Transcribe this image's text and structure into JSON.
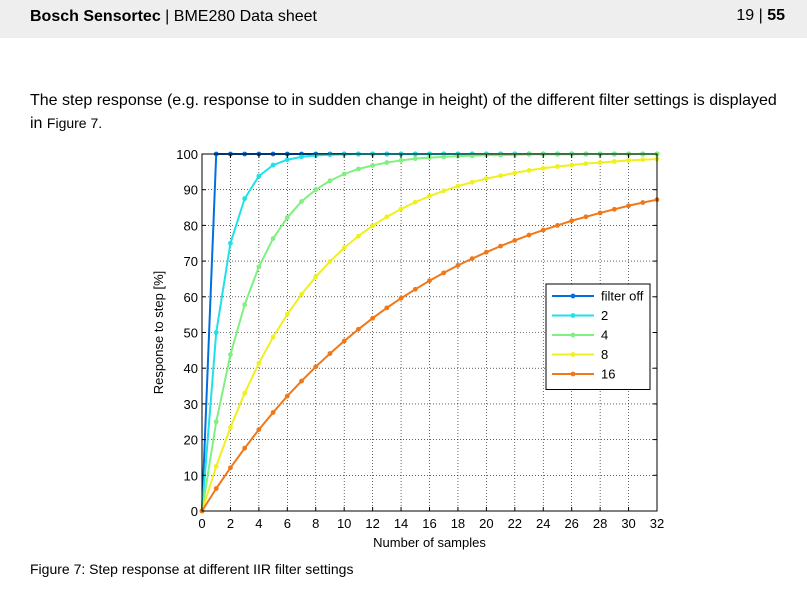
{
  "header": {
    "brand": "Bosch Sensortec",
    "separator": " | ",
    "title": "BME280 Data sheet",
    "page": "19",
    "page_sep": " | ",
    "total": "55"
  },
  "body": {
    "text": "The step response (e.g. response to in sudden change in height) of the different filter settings is displayed in",
    "figref": "Figure 7."
  },
  "caption": "Figure 7: Step response at different IIR filter settings",
  "chart_data": {
    "type": "line",
    "xlabel": "Number of samples",
    "ylabel": "Response to step [%]",
    "xlim": [
      0,
      32
    ],
    "ylim": [
      0,
      100
    ],
    "xticks": [
      0,
      2,
      4,
      6,
      8,
      10,
      12,
      14,
      16,
      18,
      20,
      22,
      24,
      26,
      28,
      30,
      32
    ],
    "yticks": [
      0,
      10,
      20,
      30,
      40,
      50,
      60,
      70,
      80,
      90,
      100
    ],
    "grid": "dotted",
    "legend_position": "right",
    "x": [
      0,
      1,
      2,
      3,
      4,
      5,
      6,
      7,
      8,
      9,
      10,
      11,
      12,
      13,
      14,
      15,
      16,
      17,
      18,
      19,
      20,
      21,
      22,
      23,
      24,
      25,
      26,
      27,
      28,
      29,
      30,
      31,
      32
    ],
    "series": [
      {
        "name": "filter off",
        "color": "#0070dd",
        "values": [
          0,
          100,
          100,
          100,
          100,
          100,
          100,
          100,
          100,
          100,
          100,
          100,
          100,
          100,
          100,
          100,
          100,
          100,
          100,
          100,
          100,
          100,
          100,
          100,
          100,
          100,
          100,
          100,
          100,
          100,
          100,
          100,
          100
        ]
      },
      {
        "name": "2",
        "color": "#22e0e8",
        "values": [
          0,
          50,
          75,
          87.5,
          93.8,
          96.9,
          98.4,
          99.2,
          99.6,
          99.8,
          99.9,
          100,
          100,
          100,
          100,
          100,
          100,
          100,
          100,
          100,
          100,
          100,
          100,
          100,
          100,
          100,
          100,
          100,
          100,
          100,
          100,
          100,
          100
        ]
      },
      {
        "name": "4",
        "color": "#80f080",
        "values": [
          0,
          25,
          43.8,
          57.8,
          68.4,
          76.3,
          82.2,
          86.7,
          90,
          92.5,
          94.4,
          95.8,
          96.8,
          97.6,
          98.2,
          98.7,
          99,
          99.2,
          99.4,
          99.5,
          99.7,
          99.7,
          99.8,
          99.9,
          99.9,
          99.9,
          99.9,
          100,
          100,
          100,
          100,
          100,
          100
        ]
      },
      {
        "name": "8",
        "color": "#f0f020",
        "values": [
          0,
          12.5,
          23.4,
          33,
          41.4,
          48.7,
          55.1,
          60.7,
          65.6,
          69.9,
          73.7,
          77,
          79.9,
          82.4,
          84.6,
          86.5,
          88.2,
          89.7,
          91,
          92.1,
          93.1,
          93.9,
          94.7,
          95.4,
          96,
          96.5,
          96.9,
          97.3,
          97.6,
          97.9,
          98.2,
          98.4,
          98.6
        ]
      },
      {
        "name": "16",
        "color": "#f07818",
        "values": [
          0,
          6.3,
          12.1,
          17.6,
          22.8,
          27.6,
          32.2,
          36.4,
          40.4,
          44.1,
          47.6,
          50.9,
          54,
          56.9,
          59.6,
          62.1,
          64.5,
          66.7,
          68.8,
          70.7,
          72.5,
          74.2,
          75.8,
          77.3,
          78.7,
          80,
          81.3,
          82.4,
          83.5,
          84.5,
          85.5,
          86.4,
          87.2
        ]
      }
    ]
  }
}
